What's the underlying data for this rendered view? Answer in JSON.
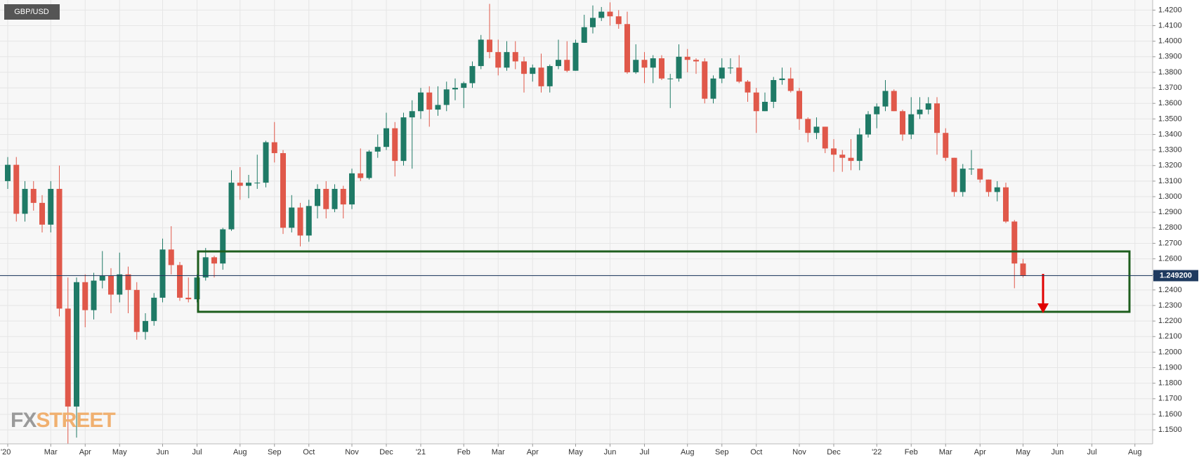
{
  "chart_data": {
    "type": "candlestick",
    "title": "GBP/USD",
    "logo": {
      "first": "FX",
      "second": "STREET"
    },
    "up_color": "#1f7a66",
    "down_color": "#e0584a",
    "grid": true,
    "price_line": {
      "value": 1.2492,
      "label": "1.249200",
      "color": "#1f3a5f"
    },
    "ylim": [
      1.141,
      1.4265
    ],
    "yticks": [
      {
        "value": 1.15,
        "label": "1.1500"
      },
      {
        "value": 1.16,
        "label": "1.1600"
      },
      {
        "value": 1.17,
        "label": "1.1700"
      },
      {
        "value": 1.18,
        "label": "1.1800"
      },
      {
        "value": 1.19,
        "label": "1.1900"
      },
      {
        "value": 1.2,
        "label": "1.2000"
      },
      {
        "value": 1.21,
        "label": "1.2100"
      },
      {
        "value": 1.22,
        "label": "1.2200"
      },
      {
        "value": 1.23,
        "label": "1.2300"
      },
      {
        "value": 1.24,
        "label": "1.2400"
      },
      {
        "value": 1.25,
        "label": "1.2500"
      },
      {
        "value": 1.26,
        "label": "1.2600"
      },
      {
        "value": 1.27,
        "label": "1.2700"
      },
      {
        "value": 1.28,
        "label": "1.2800"
      },
      {
        "value": 1.29,
        "label": "1.2900"
      },
      {
        "value": 1.3,
        "label": "1.3000"
      },
      {
        "value": 1.31,
        "label": "1.3100"
      },
      {
        "value": 1.32,
        "label": "1.3200"
      },
      {
        "value": 1.33,
        "label": "1.3300"
      },
      {
        "value": 1.34,
        "label": "1.3400"
      },
      {
        "value": 1.35,
        "label": "1.3500"
      },
      {
        "value": 1.36,
        "label": "1.3600"
      },
      {
        "value": 1.37,
        "label": "1.3700"
      },
      {
        "value": 1.38,
        "label": "1.3800"
      },
      {
        "value": 1.39,
        "label": "1.3900"
      },
      {
        "value": 1.4,
        "label": "1.4000"
      },
      {
        "value": 1.41,
        "label": "1.4100"
      },
      {
        "value": 1.42,
        "label": "1.4200"
      }
    ],
    "categories": [
      "'20",
      null,
      null,
      null,
      null,
      "Mar",
      null,
      null,
      null,
      "Apr",
      null,
      null,
      null,
      "May",
      null,
      null,
      null,
      null,
      "Jun",
      null,
      null,
      null,
      "Jul",
      null,
      null,
      null,
      null,
      "Aug",
      null,
      null,
      null,
      "Sep",
      null,
      null,
      null,
      "Oct",
      null,
      null,
      null,
      null,
      "Nov",
      null,
      null,
      null,
      "Dec",
      null,
      null,
      null,
      "'21",
      null,
      null,
      null,
      null,
      "Feb",
      null,
      null,
      null,
      "Mar",
      null,
      null,
      null,
      "Apr",
      null,
      null,
      null,
      null,
      "May",
      null,
      null,
      null,
      "Jun",
      null,
      null,
      null,
      "Jul",
      null,
      null,
      null,
      null,
      "Aug",
      null,
      null,
      null,
      "Sep",
      null,
      null,
      null,
      "Oct",
      null,
      null,
      null,
      null,
      "Nov",
      null,
      null,
      null,
      "Dec",
      null,
      null,
      null,
      null,
      "'22",
      null,
      null,
      null,
      "Feb",
      null,
      null,
      null,
      "Mar",
      null,
      null,
      null,
      "Apr",
      null,
      null,
      null,
      null,
      "May",
      null,
      null,
      null,
      "Jun",
      null,
      null,
      null,
      "Jul",
      null,
      null,
      null,
      null,
      "Aug"
    ],
    "open": [
      1.31,
      1.3205,
      1.289,
      1.305,
      1.296,
      1.282,
      1.305,
      1.228,
      1.165,
      1.245,
      1.227,
      1.246,
      1.249,
      1.237,
      1.25,
      1.24,
      1.213,
      1.22,
      1.235,
      1.266,
      1.256,
      1.235,
      1.234,
      1.248,
      1.261,
      1.257,
      1.279,
      1.309,
      1.307,
      1.309,
      1.309,
      1.335,
      1.328,
      1.28,
      1.293,
      1.275,
      1.294,
      1.305,
      1.292,
      1.305,
      1.295,
      1.315,
      1.312,
      1.329,
      1.332,
      1.344,
      1.323,
      1.351,
      1.355,
      1.367,
      1.356,
      1.359,
      1.369,
      1.37,
      1.373,
      1.384,
      1.401,
      1.393,
      1.383,
      1.393,
      1.387,
      1.379,
      1.383,
      1.371,
      1.384,
      1.388,
      1.381,
      1.399,
      1.409,
      1.415,
      1.419,
      1.416,
      1.411,
      1.38,
      1.388,
      1.383,
      1.389,
      1.376,
      1.376,
      1.39,
      1.388,
      1.387,
      1.363,
      1.376,
      1.383,
      1.383,
      1.374,
      1.367,
      1.355,
      1.361,
      1.375,
      1.376,
      1.368,
      1.35,
      1.341,
      1.345,
      1.331,
      1.327,
      1.325,
      1.323,
      1.34,
      1.353,
      1.358,
      1.368,
      1.355,
      1.34,
      1.353,
      1.356,
      1.36,
      1.341,
      1.325,
      1.303,
      1.318,
      1.318,
      1.311,
      1.303,
      1.306,
      1.284,
      1.257,
      null,
      null,
      null,
      null,
      null,
      null,
      null,
      null,
      null,
      null,
      null,
      null,
      null
    ],
    "high": [
      1.3255,
      1.3255,
      1.31,
      1.31,
      1.301,
      1.31,
      1.32,
      1.248,
      1.248,
      1.25,
      1.251,
      1.265,
      1.254,
      1.264,
      1.255,
      1.245,
      1.225,
      1.238,
      1.273,
      1.281,
      1.258,
      1.248,
      1.25,
      1.267,
      1.262,
      1.28,
      1.317,
      1.319,
      1.314,
      1.327,
      1.336,
      1.348,
      1.33,
      1.301,
      1.296,
      1.298,
      1.308,
      1.31,
      1.308,
      1.307,
      1.318,
      1.331,
      1.33,
      1.34,
      1.354,
      1.348,
      1.354,
      1.362,
      1.37,
      1.371,
      1.371,
      1.374,
      1.376,
      1.374,
      1.387,
      1.404,
      1.424,
      1.401,
      1.4,
      1.4,
      1.39,
      1.385,
      1.392,
      1.385,
      1.401,
      1.4,
      1.401,
      1.417,
      1.423,
      1.422,
      1.425,
      1.42,
      1.419,
      1.398,
      1.393,
      1.391,
      1.391,
      1.379,
      1.398,
      1.395,
      1.389,
      1.389,
      1.378,
      1.389,
      1.389,
      1.391,
      1.375,
      1.37,
      1.367,
      1.377,
      1.383,
      1.383,
      1.37,
      1.351,
      1.351,
      1.345,
      1.337,
      1.33,
      1.337,
      1.344,
      1.355,
      1.36,
      1.375,
      1.369,
      1.356,
      1.364,
      1.364,
      1.364,
      1.364,
      1.344,
      1.325,
      1.321,
      1.33,
      1.318,
      1.311,
      1.31,
      1.309,
      1.285,
      1.26,
      null,
      null,
      null,
      null,
      null,
      null,
      null,
      null,
      null,
      null,
      null,
      null,
      null
    ],
    "low": [
      1.305,
      1.284,
      1.284,
      1.291,
      1.277,
      1.277,
      1.223,
      1.141,
      1.145,
      1.216,
      1.221,
      1.241,
      1.225,
      1.232,
      1.225,
      1.208,
      1.208,
      1.217,
      1.232,
      1.25,
      1.233,
      1.232,
      1.232,
      1.246,
      1.248,
      1.253,
      1.278,
      1.298,
      1.299,
      1.305,
      1.306,
      1.322,
      1.276,
      1.277,
      1.268,
      1.271,
      1.286,
      1.286,
      1.29,
      1.286,
      1.292,
      1.31,
      1.311,
      1.325,
      1.33,
      1.313,
      1.32,
      1.318,
      1.35,
      1.345,
      1.352,
      1.355,
      1.362,
      1.357,
      1.37,
      1.382,
      1.389,
      1.378,
      1.381,
      1.382,
      1.367,
      1.374,
      1.367,
      1.367,
      1.382,
      1.38,
      1.381,
      1.399,
      1.405,
      1.413,
      1.41,
      1.408,
      1.379,
      1.379,
      1.373,
      1.373,
      1.375,
      1.357,
      1.374,
      1.38,
      1.379,
      1.36,
      1.36,
      1.373,
      1.379,
      1.373,
      1.361,
      1.341,
      1.355,
      1.357,
      1.372,
      1.367,
      1.343,
      1.335,
      1.337,
      1.328,
      1.316,
      1.316,
      1.317,
      1.317,
      1.338,
      1.344,
      1.355,
      1.355,
      1.336,
      1.337,
      1.35,
      1.353,
      1.327,
      1.323,
      1.3,
      1.3,
      1.314,
      1.309,
      1.3,
      1.297,
      1.283,
      1.2411,
      1.248,
      null,
      null,
      null,
      null,
      null,
      null,
      null,
      null,
      null,
      null,
      null,
      null,
      null
    ],
    "close": [
      1.3205,
      1.289,
      1.305,
      1.296,
      1.282,
      1.305,
      1.228,
      1.165,
      1.245,
      1.227,
      1.246,
      1.249,
      1.237,
      1.25,
      1.24,
      1.213,
      1.22,
      1.235,
      1.266,
      1.256,
      1.235,
      1.234,
      1.248,
      1.261,
      1.257,
      1.279,
      1.309,
      1.307,
      1.309,
      1.309,
      1.335,
      1.328,
      1.28,
      1.293,
      1.275,
      1.294,
      1.305,
      1.292,
      1.305,
      1.295,
      1.315,
      1.312,
      1.329,
      1.332,
      1.344,
      1.323,
      1.351,
      1.355,
      1.367,
      1.356,
      1.359,
      1.369,
      1.37,
      1.373,
      1.384,
      1.401,
      1.393,
      1.383,
      1.393,
      1.387,
      1.379,
      1.383,
      1.371,
      1.384,
      1.388,
      1.381,
      1.399,
      1.409,
      1.415,
      1.419,
      1.416,
      1.411,
      1.38,
      1.388,
      1.383,
      1.389,
      1.376,
      1.376,
      1.39,
      1.388,
      1.387,
      1.363,
      1.376,
      1.383,
      1.383,
      1.374,
      1.367,
      1.355,
      1.361,
      1.375,
      1.376,
      1.368,
      1.35,
      1.341,
      1.345,
      1.331,
      1.327,
      1.325,
      1.323,
      1.34,
      1.353,
      1.358,
      1.368,
      1.355,
      1.34,
      1.353,
      1.356,
      1.36,
      1.341,
      1.325,
      1.303,
      1.318,
      1.318,
      1.311,
      1.303,
      1.306,
      1.284,
      1.257,
      1.2492,
      null,
      null,
      null,
      null,
      null,
      null,
      null,
      null,
      null,
      null,
      null,
      null,
      null
    ]
  }
}
